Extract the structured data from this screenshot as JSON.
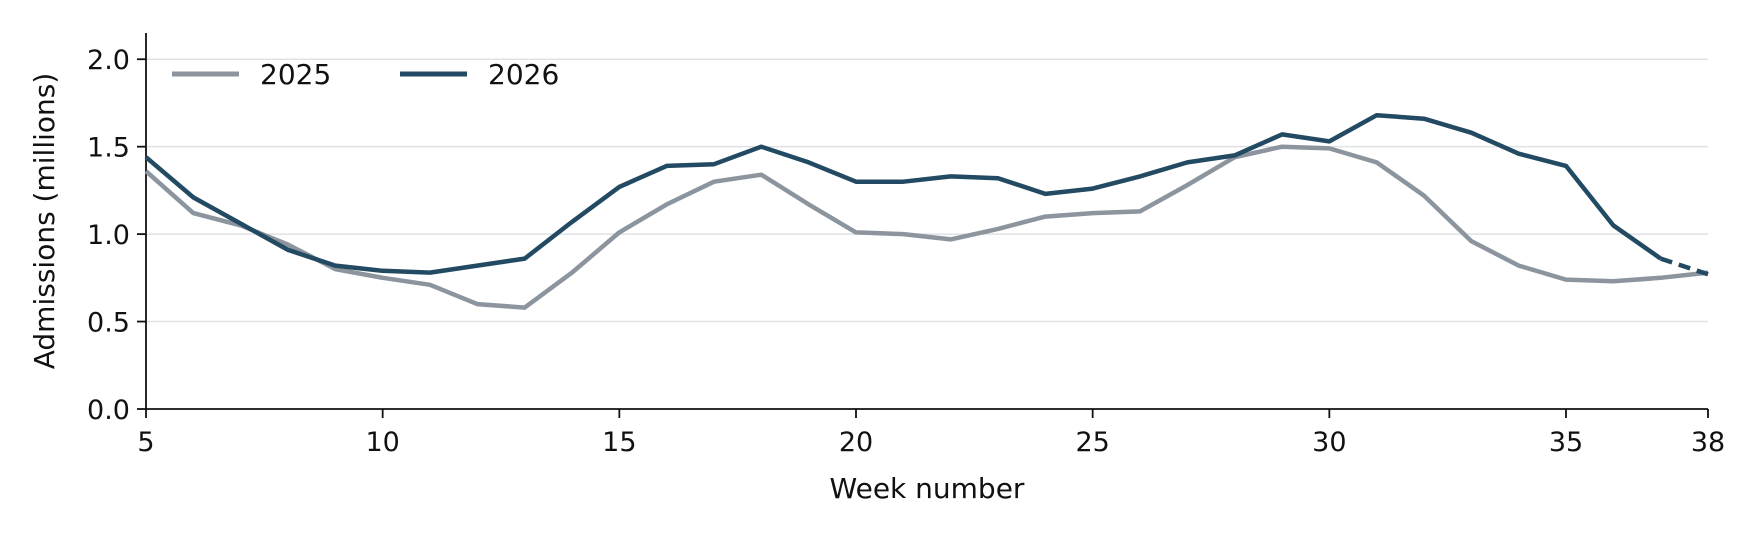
{
  "chart_data": {
    "type": "line",
    "title": "",
    "xlabel": "Week number",
    "ylabel": "Admissions (millions)",
    "xlim": [
      5,
      38
    ],
    "ylim": [
      0,
      2.15
    ],
    "x_ticks": [
      "5",
      "10",
      "15",
      "20",
      "25",
      "30",
      "35",
      "38"
    ],
    "y_ticks": [
      "0.0",
      "0.5",
      "1.0",
      "1.5",
      "2.0"
    ],
    "grid": "horizontal",
    "legend_position": "top-left",
    "series": [
      {
        "name": "2025",
        "color": "#8c959e",
        "x": [
          5,
          6,
          7,
          8,
          9,
          10,
          11,
          12,
          13,
          14,
          15,
          16,
          17,
          18,
          19,
          20,
          21,
          22,
          23,
          24,
          25,
          26,
          27,
          28,
          29,
          30,
          31,
          32,
          33,
          34,
          35,
          36,
          37,
          38
        ],
        "values": [
          1.36,
          1.12,
          1.05,
          0.94,
          0.8,
          0.75,
          0.71,
          0.6,
          0.58,
          0.78,
          1.01,
          1.17,
          1.3,
          1.34,
          1.17,
          1.01,
          1.0,
          0.97,
          1.03,
          1.1,
          1.12,
          1.13,
          1.28,
          1.44,
          1.5,
          1.49,
          1.41,
          1.22,
          0.96,
          0.82,
          0.74,
          0.73,
          0.75,
          0.78
        ]
      },
      {
        "name": "2026",
        "color": "#234a63",
        "x": [
          5,
          6,
          7,
          8,
          9,
          10,
          11,
          12,
          13,
          14,
          15,
          16,
          17,
          18,
          19,
          20,
          21,
          22,
          23,
          24,
          25,
          26,
          27,
          28,
          29,
          30,
          31,
          32,
          33,
          34,
          35,
          36,
          37,
          38
        ],
        "values": [
          1.44,
          1.21,
          1.06,
          0.91,
          0.82,
          0.79,
          0.78,
          0.82,
          0.86,
          1.07,
          1.27,
          1.39,
          1.4,
          1.5,
          1.41,
          1.3,
          1.3,
          1.33,
          1.32,
          1.23,
          1.26,
          1.33,
          1.41,
          1.45,
          1.57,
          1.53,
          1.68,
          1.66,
          1.58,
          1.46,
          1.39,
          1.05,
          0.86,
          0.77
        ],
        "dashed_from_x": 37
      }
    ]
  }
}
